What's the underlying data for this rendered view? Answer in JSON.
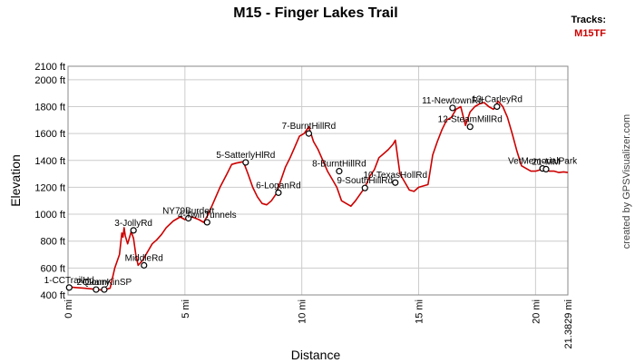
{
  "chart_data": {
    "type": "line",
    "title": "M15 - Finger Lakes Trail",
    "xlabel": "Distance",
    "ylabel": "Elevation",
    "xlim": [
      0,
      21.3829
    ],
    "ylim": [
      400,
      2100
    ],
    "y_ticks": [
      400,
      600,
      800,
      1000,
      1200,
      1400,
      1600,
      1800,
      2000,
      2100
    ],
    "y_tick_labels": [
      "400 ft",
      "600 ft",
      "800 ft",
      "1000 ft",
      "1200 ft",
      "1400 ft",
      "1600 ft",
      "1800 ft",
      "2000 ft",
      "2100 ft"
    ],
    "x_ticks": [
      0,
      5,
      10,
      15,
      20,
      21.3829
    ],
    "x_tick_labels": [
      "0 mi",
      "5 mi",
      "10 mi",
      "15 mi",
      "20 mi",
      "21.3829 mi"
    ],
    "grid": true,
    "legend": {
      "title": "Tracks:",
      "position": "top-right",
      "items": [
        {
          "name": "M15TF",
          "color": "#cc0000"
        }
      ]
    },
    "series": [
      {
        "name": "M15TF",
        "color": "#cc0000",
        "x": [
          0,
          0.3,
          0.7,
          1.0,
          1.2,
          1.4,
          1.5,
          1.7,
          1.8,
          2.0,
          2.2,
          2.3,
          2.35,
          2.4,
          2.45,
          2.55,
          2.7,
          2.8,
          2.9,
          3.0,
          3.2,
          3.4,
          3.6,
          3.8,
          4.0,
          4.2,
          4.5,
          4.8,
          5.0,
          5.3,
          5.6,
          5.8,
          6.0,
          6.2,
          6.5,
          6.8,
          7.0,
          7.2,
          7.5,
          7.7,
          7.9,
          8.1,
          8.3,
          8.5,
          8.7,
          8.9,
          9.1,
          9.3,
          9.5,
          9.7,
          9.9,
          10.1,
          10.3,
          10.5,
          10.7,
          10.9,
          11.1,
          11.3,
          11.5,
          11.7,
          11.9,
          12.1,
          12.3,
          12.5,
          12.7,
          12.9,
          13.1,
          13.3,
          13.5,
          13.7,
          13.9,
          14.0,
          14.2,
          14.4,
          14.6,
          14.8,
          15.0,
          15.2,
          15.4,
          15.6,
          15.8,
          16.0,
          16.2,
          16.4,
          16.6,
          16.8,
          17.0,
          17.2,
          17.4,
          17.6,
          17.8,
          18.0,
          18.2,
          18.4,
          18.6,
          18.8,
          19.0,
          19.2,
          19.4,
          19.6,
          19.8,
          20.0,
          20.2,
          20.4,
          20.6,
          20.8,
          21.0,
          21.2,
          21.3829
        ],
        "y": [
          460,
          455,
          450,
          445,
          440,
          438,
          440,
          445,
          450,
          600,
          700,
          860,
          830,
          900,
          840,
          780,
          870,
          820,
          700,
          620,
          660,
          720,
          780,
          810,
          850,
          900,
          950,
          980,
          960,
          980,
          960,
          940,
          1000,
          1080,
          1200,
          1300,
          1370,
          1380,
          1390,
          1300,
          1200,
          1130,
          1080,
          1070,
          1100,
          1150,
          1250,
          1350,
          1420,
          1500,
          1580,
          1600,
          1650,
          1540,
          1480,
          1400,
          1320,
          1260,
          1200,
          1100,
          1080,
          1060,
          1100,
          1150,
          1200,
          1280,
          1330,
          1420,
          1450,
          1480,
          1520,
          1550,
          1300,
          1240,
          1180,
          1170,
          1200,
          1210,
          1220,
          1440,
          1540,
          1630,
          1700,
          1720,
          1780,
          1800,
          1660,
          1760,
          1800,
          1820,
          1830,
          1800,
          1780,
          1840,
          1800,
          1720,
          1600,
          1470,
          1360,
          1340,
          1320,
          1320,
          1330,
          1330,
          1320,
          1320,
          1310,
          1315,
          1310
        ]
      }
    ],
    "waypoints": [
      {
        "label": "1-CCTrailHd",
        "x": 0.05,
        "y": 455
      },
      {
        "label": "Quarry",
        "x": 1.2,
        "y": 440
      },
      {
        "label": "2-ConnKinSP",
        "x": 1.55,
        "y": 440
      },
      {
        "label": "3-JollyRd",
        "x": 2.8,
        "y": 880
      },
      {
        "label": "MiddleRd",
        "x": 3.25,
        "y": 620
      },
      {
        "label": "NY79Burdett",
        "x": 5.15,
        "y": 970
      },
      {
        "label": "4-TwinTunnels",
        "x": 5.95,
        "y": 940
      },
      {
        "label": "5-SatterlyHlRd",
        "x": 7.6,
        "y": 1385
      },
      {
        "label": "6-LoganRd",
        "x": 9.0,
        "y": 1160
      },
      {
        "label": "7-BurntHillRd",
        "x": 10.3,
        "y": 1600
      },
      {
        "label": "8-BurntHillRd",
        "x": 11.6,
        "y": 1320
      },
      {
        "label": "9-SouthHillRd",
        "x": 12.7,
        "y": 1195
      },
      {
        "label": "10-TexasHollRd",
        "x": 14.0,
        "y": 1235
      },
      {
        "label": "11-NewtownRd",
        "x": 16.45,
        "y": 1790
      },
      {
        "label": "12-SteamMillRd",
        "x": 17.2,
        "y": 1650
      },
      {
        "label": "13-CarleyRd",
        "x": 18.35,
        "y": 1800
      },
      {
        "label": "VetMemorialPark",
        "x": 20.3,
        "y": 1340
      },
      {
        "label": "21-MM",
        "x": 20.45,
        "y": 1335
      }
    ]
  },
  "credit": "created by GPSVisualizer.com"
}
